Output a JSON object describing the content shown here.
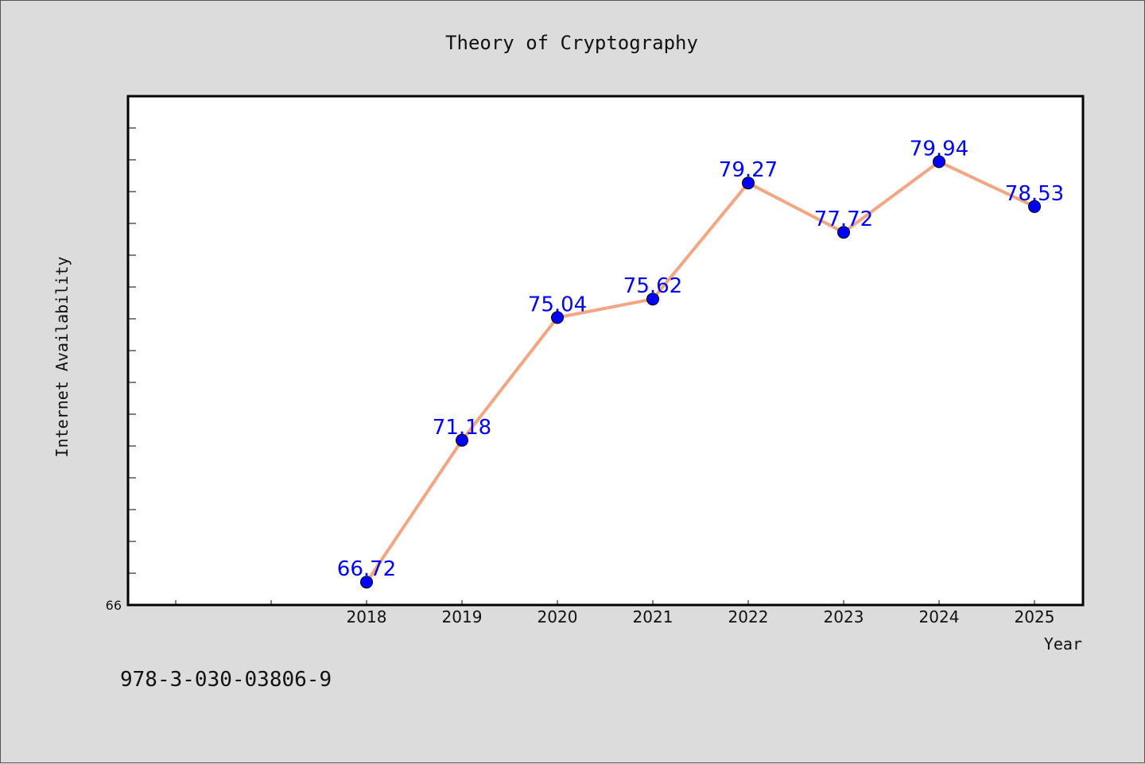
{
  "chart_data": {
    "type": "line",
    "title": "Theory of Cryptography",
    "xlabel": "Year",
    "ylabel": "Internet Availability",
    "categories": [
      "2018",
      "2019",
      "2020",
      "2021",
      "2022",
      "2023",
      "2024",
      "2025"
    ],
    "series": [
      {
        "values": [
          66.72,
          71.18,
          75.04,
          75.62,
          79.27,
          77.72,
          79.94,
          78.53
        ],
        "labels": [
          "66.72",
          "71.18",
          "75.04",
          "75.62",
          "79.27",
          "77.72",
          "79.94",
          "78.53"
        ]
      }
    ],
    "ylim": [
      66,
      82
    ],
    "y_min_label": "66",
    "grid": false,
    "legend": "none",
    "line_color": "#f4a582",
    "marker_color": "#0000ff",
    "label_color": "#0000ff"
  },
  "footer": {
    "isbn": "978-3-030-03806-9"
  }
}
